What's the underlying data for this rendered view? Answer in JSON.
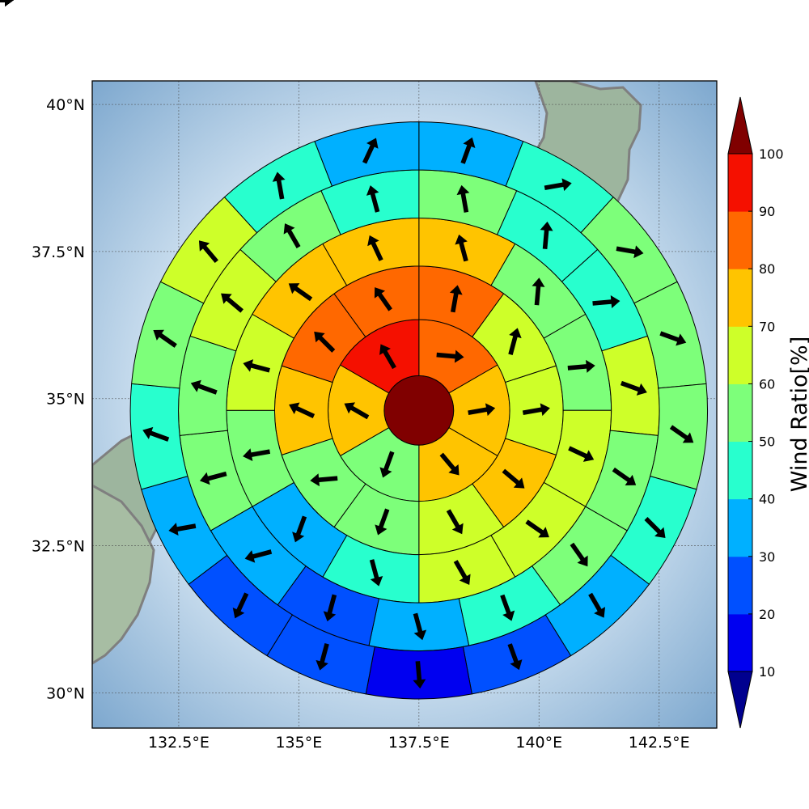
{
  "chart_data": {
    "type": "polar-sector-map",
    "title": "",
    "xlabel": "",
    "ylabel": "",
    "map": {
      "lon_range": [
        130.7,
        143.7
      ],
      "lat_range": [
        29.4,
        40.4
      ],
      "x_tick_labels": [
        {
          "lon": 132.5,
          "label": "132.5°E"
        },
        {
          "lon": 135,
          "label": "135°E"
        },
        {
          "lon": 137.5,
          "label": "137.5°E"
        },
        {
          "lon": 140,
          "label": "140°E"
        },
        {
          "lon": 142.5,
          "label": "142.5°E"
        }
      ],
      "y_tick_labels": [
        {
          "lat": 40,
          "label": "40°N"
        },
        {
          "lat": 37.5,
          "label": "37.5°N"
        },
        {
          "lat": 35,
          "label": "35°N"
        },
        {
          "lat": 32.5,
          "label": "32.5°N"
        },
        {
          "lat": 30,
          "label": "30°N"
        }
      ],
      "grid": true,
      "center": {
        "lon": 137.5,
        "lat": 34.8
      },
      "ring_radius_deg": [
        0.65,
        1.7,
        2.7,
        3.6,
        4.5,
        5.4
      ]
    },
    "colorbar": {
      "label": "Wind Ratio[%]",
      "ticks": [
        "10",
        "20",
        "30",
        "40",
        "50",
        "60",
        "70",
        "80",
        "90",
        "100"
      ],
      "under_color": "#00008f",
      "over_color": "#800000",
      "bins": [
        {
          "min": 10,
          "max": 20,
          "color": "#0000f0"
        },
        {
          "min": 20,
          "max": 30,
          "color": "#0050ff"
        },
        {
          "min": 30,
          "max": 40,
          "color": "#00b0ff"
        },
        {
          "min": 40,
          "max": 50,
          "color": "#28ffce"
        },
        {
          "min": 50,
          "max": 60,
          "color": "#7dff7a"
        },
        {
          "min": 60,
          "max": 70,
          "color": "#ceff29"
        },
        {
          "min": 70,
          "max": 80,
          "color": "#ffc400"
        },
        {
          "min": 80,
          "max": 90,
          "color": "#ff6800"
        },
        {
          "min": 90,
          "max": 100,
          "color": "#f51000"
        }
      ]
    },
    "center_cell": {
      "value": 100,
      "arrow_deg": null
    },
    "rings": [
      {
        "ring": 1,
        "sectors": [
          {
            "value": 85,
            "arrow_deg": 95
          },
          {
            "value": 75,
            "arrow_deg": 80
          },
          {
            "value": 75,
            "arrow_deg": 140
          },
          {
            "value": 55,
            "arrow_deg": 200
          },
          {
            "value": 75,
            "arrow_deg": 300
          },
          {
            "value": 95,
            "arrow_deg": 330
          }
        ]
      },
      {
        "ring": 2,
        "sectors": [
          {
            "value": 85,
            "arrow_deg": 10
          },
          {
            "value": 65,
            "arrow_deg": 15
          },
          {
            "value": 65,
            "arrow_deg": 80
          },
          {
            "value": 75,
            "arrow_deg": 130
          },
          {
            "value": 65,
            "arrow_deg": 150
          },
          {
            "value": 55,
            "arrow_deg": 200
          },
          {
            "value": 55,
            "arrow_deg": 265
          },
          {
            "value": 75,
            "arrow_deg": 295
          },
          {
            "value": 85,
            "arrow_deg": 315
          },
          {
            "value": 85,
            "arrow_deg": 325
          }
        ]
      },
      {
        "ring": 3,
        "sectors": [
          {
            "value": 75,
            "arrow_deg": 345
          },
          {
            "value": 55,
            "arrow_deg": 5
          },
          {
            "value": 55,
            "arrow_deg": 85
          },
          {
            "value": 65,
            "arrow_deg": 115
          },
          {
            "value": 65,
            "arrow_deg": 125
          },
          {
            "value": 65,
            "arrow_deg": 150
          },
          {
            "value": 45,
            "arrow_deg": 165
          },
          {
            "value": 35,
            "arrow_deg": 200
          },
          {
            "value": 55,
            "arrow_deg": 260
          },
          {
            "value": 65,
            "arrow_deg": 285
          },
          {
            "value": 75,
            "arrow_deg": 305
          },
          {
            "value": 75,
            "arrow_deg": 335
          }
        ]
      },
      {
        "ring": 4,
        "sectors": [
          {
            "value": 55,
            "arrow_deg": 350
          },
          {
            "value": 45,
            "arrow_deg": 5
          },
          {
            "value": 45,
            "arrow_deg": 85
          },
          {
            "value": 65,
            "arrow_deg": 110
          },
          {
            "value": 55,
            "arrow_deg": 125
          },
          {
            "value": 55,
            "arrow_deg": 145
          },
          {
            "value": 45,
            "arrow_deg": 160
          },
          {
            "value": 35,
            "arrow_deg": 165
          },
          {
            "value": 25,
            "arrow_deg": 195
          },
          {
            "value": 35,
            "arrow_deg": 255
          },
          {
            "value": 55,
            "arrow_deg": 255
          },
          {
            "value": 55,
            "arrow_deg": 290
          },
          {
            "value": 65,
            "arrow_deg": 310
          },
          {
            "value": 55,
            "arrow_deg": 330
          },
          {
            "value": 45,
            "arrow_deg": 345
          }
        ]
      },
      {
        "ring": 5,
        "sectors": [
          {
            "value": 35,
            "arrow_deg": 20
          },
          {
            "value": 45,
            "arrow_deg": 80
          },
          {
            "value": 55,
            "arrow_deg": 100
          },
          {
            "value": 55,
            "arrow_deg": 110
          },
          {
            "value": 55,
            "arrow_deg": 125
          },
          {
            "value": 45,
            "arrow_deg": 135
          },
          {
            "value": 35,
            "arrow_deg": 150
          },
          {
            "value": 25,
            "arrow_deg": 160
          },
          {
            "value": 15,
            "arrow_deg": 175
          },
          {
            "value": 25,
            "arrow_deg": 195
          },
          {
            "value": 25,
            "arrow_deg": 205
          },
          {
            "value": 35,
            "arrow_deg": 260
          },
          {
            "value": 45,
            "arrow_deg": 290
          },
          {
            "value": 55,
            "arrow_deg": 305
          },
          {
            "value": 65,
            "arrow_deg": 320
          },
          {
            "value": 45,
            "arrow_deg": 350
          },
          {
            "value": 35,
            "arrow_deg": 25
          }
        ]
      },
      {
        "ring": 6,
        "sectors": [
          {
            "value": 35,
            "arrow_deg": 90
          },
          {
            "value": 45,
            "arrow_deg": 110
          },
          {
            "value": 55,
            "arrow_deg": 120
          },
          {
            "value": 45,
            "arrow_deg": 125
          },
          {
            "value": 35,
            "arrow_deg": 140
          },
          {
            "value": 25,
            "arrow_deg": 150
          },
          {
            "value": 25,
            "arrow_deg": 155
          },
          {
            "value": 15,
            "arrow_deg": 160
          },
          {
            "value": 15,
            "arrow_deg": 175
          },
          {
            "value": 25,
            "arrow_deg": 195
          },
          {
            "value": 35,
            "arrow_deg": 220
          },
          {
            "value": 35,
            "arrow_deg": 245
          },
          {
            "value": 45,
            "arrow_deg": 255
          },
          {
            "value": 45,
            "arrow_deg": 305
          },
          {
            "value": 45,
            "arrow_deg": 335
          },
          {
            "value": 45,
            "arrow_deg": 340
          },
          {
            "value": 45,
            "arrow_deg": 350
          },
          {
            "value": 35,
            "arrow_deg": 30
          }
        ]
      }
    ]
  }
}
